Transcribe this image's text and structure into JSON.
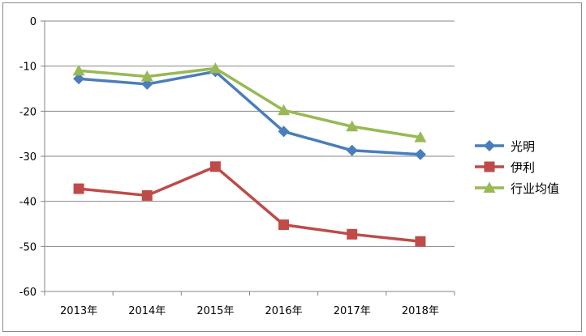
{
  "chart_data": {
    "type": "line",
    "categories": [
      "2013年",
      "2014年",
      "2015年",
      "2016年",
      "2017年",
      "2018年"
    ],
    "ylim": [
      -60,
      0
    ],
    "yticks": [
      0,
      -10,
      -20,
      -30,
      -40,
      -50,
      -60
    ],
    "grid": true,
    "legend_position": "right",
    "series": [
      {
        "name": "光明",
        "color": "#4a7ebb",
        "marker": "diamond",
        "values": [
          -12.8,
          -14.0,
          -11.2,
          -24.5,
          -28.7,
          -29.6
        ]
      },
      {
        "name": "伊利",
        "color": "#be4b48",
        "marker": "square",
        "values": [
          -37.2,
          -38.7,
          -32.3,
          -45.2,
          -47.3,
          -48.9
        ]
      },
      {
        "name": "行业均值",
        "color": "#98b954",
        "marker": "triangle",
        "values": [
          -11.0,
          -12.3,
          -10.5,
          -19.8,
          -23.4,
          -25.8
        ]
      }
    ]
  }
}
